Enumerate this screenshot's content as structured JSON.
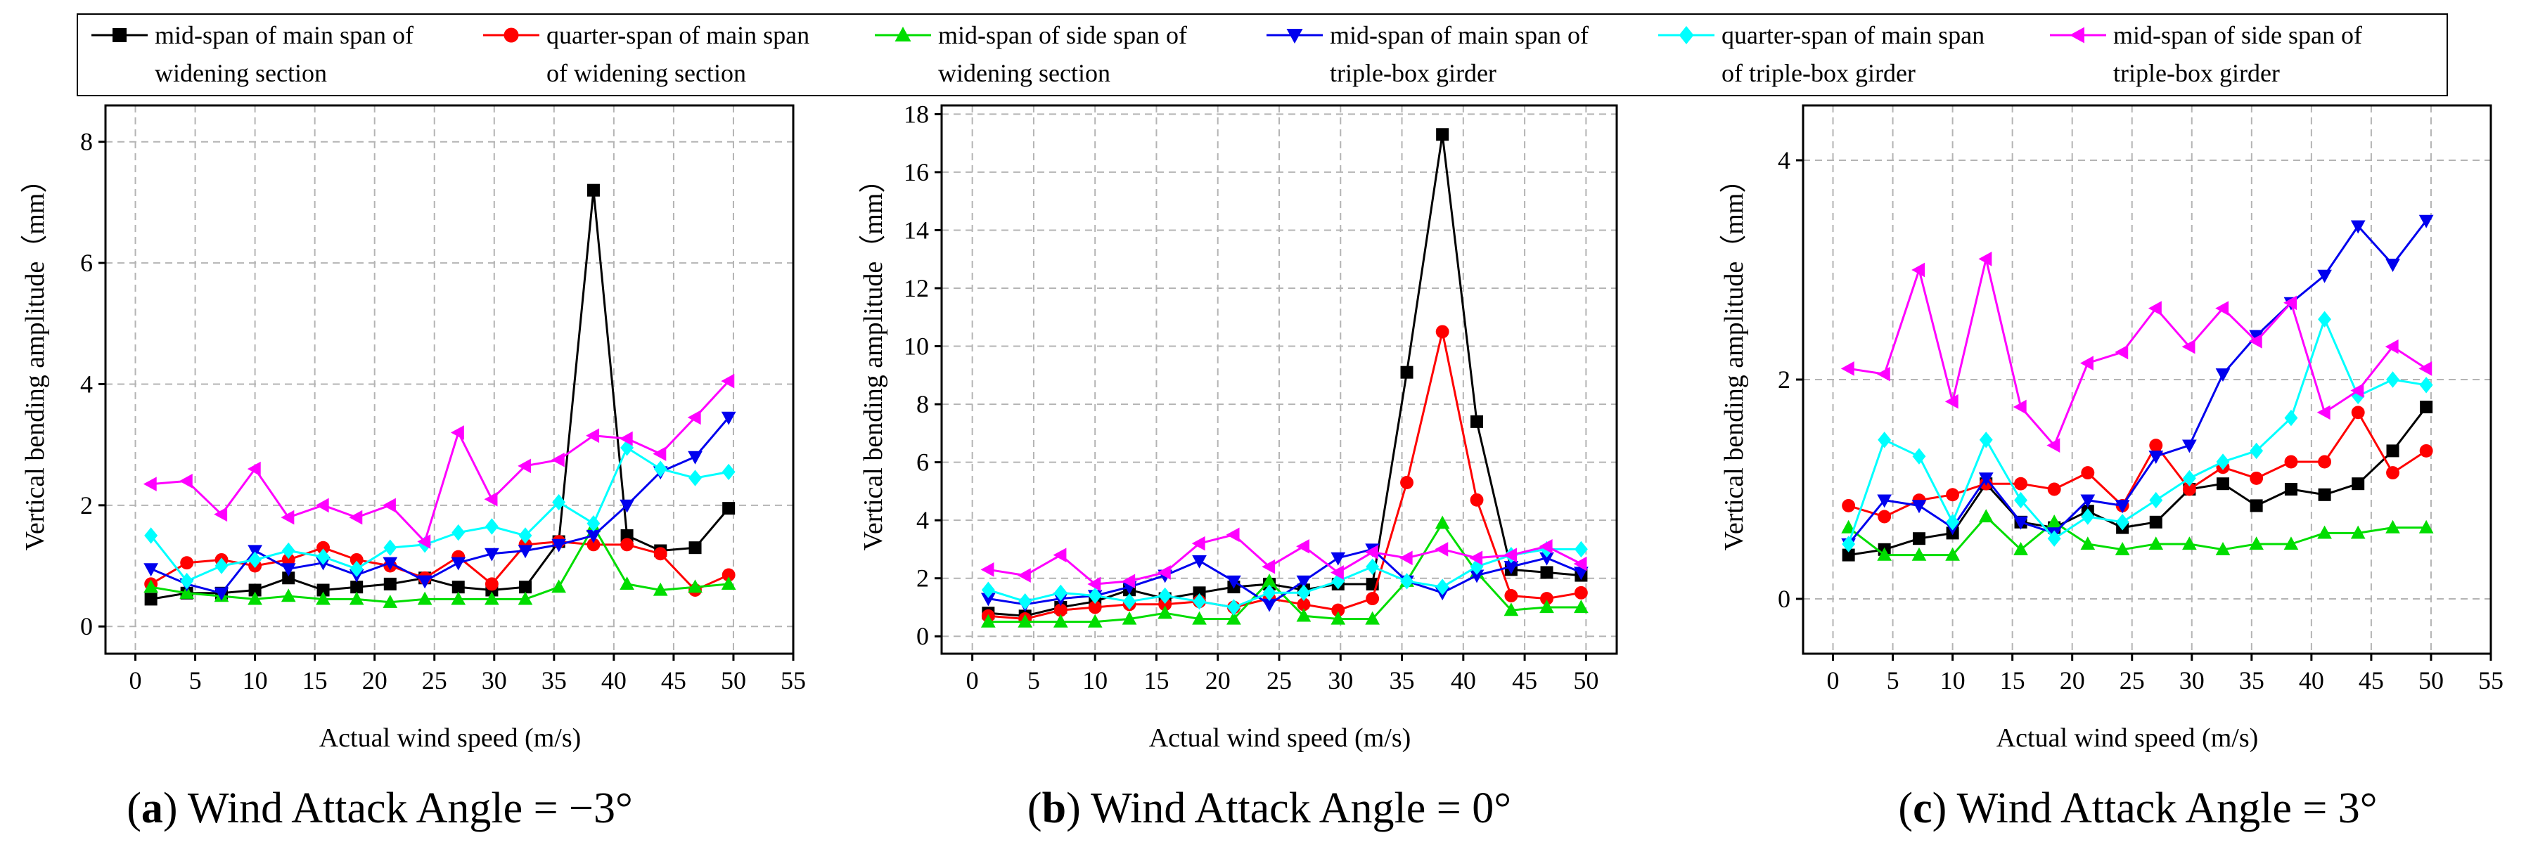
{
  "legend": {
    "entries": [
      {
        "line1": "mid-span of main span of",
        "line2": "widening section",
        "color": "#000000",
        "marker": "square"
      },
      {
        "line1": "quarter-span of main span",
        "line2": "of widening section",
        "color": "#ff0000",
        "marker": "circle"
      },
      {
        "line1": "mid-span of side span of",
        "line2": "widening section",
        "color": "#00dd00",
        "marker": "triangle-up"
      },
      {
        "line1": "mid-span of main span of",
        "line2": "triple-box girder",
        "color": "#0000ee",
        "marker": "triangle-down"
      },
      {
        "line1": "quarter-span of main span",
        "line2": "of triple-box girder",
        "color": "#00ffff",
        "marker": "diamond"
      },
      {
        "line1": "mid-span of side span of",
        "line2": "triple-box girder",
        "color": "#ff00ff",
        "marker": "triangle-left"
      }
    ]
  },
  "chart_data": [
    {
      "type": "line",
      "panel_letter": "a",
      "caption_rest": " Wind Attack Angle = −3°",
      "xlabel": "Actual wind speed (m/s)",
      "ylabel": "Vertical bending amplitude（mm）",
      "xlim": [
        -2.5,
        55
      ],
      "ylim": [
        -0.45,
        8.6
      ],
      "xticks": [
        0,
        5,
        10,
        15,
        20,
        25,
        30,
        35,
        40,
        45,
        50,
        55
      ],
      "yticks": [
        0,
        2,
        4,
        6,
        8
      ],
      "grid": true,
      "x": [
        1.3,
        4.3,
        7.2,
        10.0,
        12.8,
        15.7,
        18.5,
        21.3,
        24.2,
        27.0,
        29.8,
        32.6,
        35.4,
        38.3,
        41.1,
        43.9,
        46.8,
        49.6
      ],
      "series": [
        {
          "name": "mid-span of main span of widening section",
          "values": [
            0.45,
            0.55,
            0.55,
            0.6,
            0.8,
            0.6,
            0.65,
            0.7,
            0.8,
            0.65,
            0.6,
            0.65,
            1.4,
            7.2,
            1.5,
            1.25,
            1.3,
            1.95
          ]
        },
        {
          "name": "quarter-span of main span of widening section",
          "values": [
            0.7,
            1.05,
            1.1,
            1.0,
            1.1,
            1.3,
            1.1,
            1.0,
            0.8,
            1.15,
            0.7,
            1.35,
            1.4,
            1.35,
            1.35,
            1.2,
            0.6,
            0.85
          ]
        },
        {
          "name": "mid-span of side span of widening section",
          "values": [
            0.65,
            0.55,
            0.5,
            0.45,
            0.5,
            0.45,
            0.45,
            0.4,
            0.45,
            0.45,
            0.45,
            0.45,
            0.65,
            1.65,
            0.7,
            0.6,
            0.65,
            0.7
          ]
        },
        {
          "name": "mid-span of main span of triple-box girder",
          "values": [
            0.95,
            0.7,
            0.55,
            1.25,
            0.95,
            1.05,
            0.85,
            1.05,
            0.75,
            1.05,
            1.2,
            1.25,
            1.35,
            1.5,
            2.0,
            2.55,
            2.8,
            3.45
          ]
        },
        {
          "name": "quarter-span of main span of triple-box girder",
          "values": [
            1.5,
            0.75,
            1.0,
            1.1,
            1.25,
            1.15,
            0.95,
            1.3,
            1.35,
            1.55,
            1.65,
            1.5,
            2.05,
            1.7,
            2.95,
            2.6,
            2.45,
            2.55
          ]
        },
        {
          "name": "mid-span of side span of triple-box girder",
          "values": [
            2.35,
            2.4,
            1.85,
            2.6,
            1.8,
            2.0,
            1.8,
            2.0,
            1.4,
            3.2,
            2.1,
            2.65,
            2.75,
            3.15,
            3.1,
            2.85,
            3.45,
            4.05
          ]
        }
      ]
    },
    {
      "type": "line",
      "panel_letter": "b",
      "caption_rest": " Wind Attack Angle = 0°",
      "xlabel": "Actual wind speed (m/s)",
      "ylabel": "Vertical bending amplitude（mm）",
      "xlim": [
        -2.5,
        52.5
      ],
      "ylim": [
        -0.6,
        18.3
      ],
      "xticks": [
        0,
        5,
        10,
        15,
        20,
        25,
        30,
        35,
        40,
        45,
        50
      ],
      "yticks": [
        0,
        2,
        4,
        6,
        8,
        10,
        12,
        14,
        16,
        18
      ],
      "grid": true,
      "x": [
        1.3,
        4.3,
        7.2,
        10.0,
        12.8,
        15.7,
        18.5,
        21.3,
        24.2,
        27.0,
        29.8,
        32.6,
        35.4,
        38.3,
        41.1,
        43.9,
        46.8,
        49.6
      ],
      "series": [
        {
          "name": "mid-span of main span of widening section",
          "values": [
            0.8,
            0.7,
            1.0,
            1.2,
            1.6,
            1.3,
            1.5,
            1.7,
            1.8,
            1.6,
            1.8,
            1.8,
            9.1,
            17.3,
            7.4,
            2.3,
            2.2,
            2.1
          ]
        },
        {
          "name": "quarter-span of main span of widening section",
          "values": [
            0.7,
            0.6,
            0.9,
            1.0,
            1.1,
            1.1,
            1.2,
            1.0,
            1.3,
            1.1,
            0.9,
            1.3,
            5.3,
            10.5,
            4.7,
            1.4,
            1.3,
            1.5
          ]
        },
        {
          "name": "mid-span of side span of widening section",
          "values": [
            0.5,
            0.5,
            0.5,
            0.5,
            0.6,
            0.8,
            0.6,
            0.6,
            1.9,
            0.7,
            0.6,
            0.6,
            1.9,
            3.9,
            2.2,
            0.9,
            1.0,
            1.0
          ]
        },
        {
          "name": "mid-span of main span of triple-box girder",
          "values": [
            1.3,
            1.1,
            1.3,
            1.4,
            1.7,
            2.1,
            2.6,
            1.9,
            1.1,
            1.9,
            2.7,
            3.0,
            1.9,
            1.5,
            2.1,
            2.4,
            2.7,
            2.2
          ]
        },
        {
          "name": "quarter-span of main span of triple-box girder",
          "values": [
            1.6,
            1.2,
            1.5,
            1.4,
            1.2,
            1.4,
            1.2,
            1.0,
            1.5,
            1.5,
            1.9,
            2.4,
            1.9,
            1.7,
            2.4,
            2.8,
            3.0,
            3.0
          ]
        },
        {
          "name": "mid-span of side span of triple-box girder",
          "values": [
            2.3,
            2.1,
            2.8,
            1.8,
            1.9,
            2.2,
            3.2,
            3.5,
            2.4,
            3.1,
            2.2,
            2.9,
            2.7,
            3.0,
            2.7,
            2.8,
            3.1,
            2.5
          ]
        }
      ]
    },
    {
      "type": "line",
      "panel_letter": "c",
      "caption_rest": " Wind Attack Angle = 3°",
      "xlabel": "Actual wind speed (m/s)",
      "ylabel": "Vertical bending amplitude（mm）",
      "xlim": [
        -2.5,
        55
      ],
      "ylim": [
        -0.5,
        4.5
      ],
      "xticks": [
        0,
        5,
        10,
        15,
        20,
        25,
        30,
        35,
        40,
        45,
        50,
        55
      ],
      "yticks": [
        0,
        2,
        4
      ],
      "grid": true,
      "x": [
        1.3,
        4.3,
        7.2,
        10.0,
        12.8,
        15.7,
        18.5,
        21.3,
        24.2,
        27.0,
        29.8,
        32.6,
        35.4,
        38.3,
        41.1,
        43.9,
        46.8,
        49.6
      ],
      "series": [
        {
          "name": "mid-span of main span of widening section",
          "values": [
            0.4,
            0.45,
            0.55,
            0.6,
            1.05,
            0.7,
            0.65,
            0.8,
            0.65,
            0.7,
            1.0,
            1.05,
            0.85,
            1.0,
            0.95,
            1.05,
            1.35,
            1.75
          ]
        },
        {
          "name": "quarter-span of main span of widening section",
          "values": [
            0.85,
            0.75,
            0.9,
            0.95,
            1.05,
            1.05,
            1.0,
            1.15,
            0.85,
            1.4,
            1.0,
            1.2,
            1.1,
            1.25,
            1.25,
            1.7,
            1.15,
            1.35
          ]
        },
        {
          "name": "mid-span of side span of widening section",
          "values": [
            0.65,
            0.4,
            0.4,
            0.4,
            0.75,
            0.45,
            0.7,
            0.5,
            0.45,
            0.5,
            0.5,
            0.45,
            0.5,
            0.5,
            0.6,
            0.6,
            0.65,
            0.65
          ]
        },
        {
          "name": "mid-span of main span of triple-box girder",
          "values": [
            0.5,
            0.9,
            0.85,
            0.65,
            1.1,
            0.7,
            0.6,
            0.9,
            0.85,
            1.3,
            1.4,
            2.05,
            2.4,
            2.7,
            2.95,
            3.4,
            3.05,
            3.45
          ]
        },
        {
          "name": "quarter-span of main span of triple-box girder",
          "values": [
            0.5,
            1.45,
            1.3,
            0.7,
            1.45,
            0.9,
            0.55,
            0.75,
            0.7,
            0.9,
            1.1,
            1.25,
            1.35,
            1.65,
            2.55,
            1.85,
            2.0,
            1.95
          ]
        },
        {
          "name": "mid-span of side span of triple-box girder",
          "values": [
            2.1,
            2.05,
            3.0,
            1.8,
            3.1,
            1.75,
            1.4,
            2.15,
            2.25,
            2.65,
            2.3,
            2.65,
            2.35,
            2.7,
            1.7,
            1.9,
            2.3,
            2.1
          ]
        }
      ]
    }
  ]
}
